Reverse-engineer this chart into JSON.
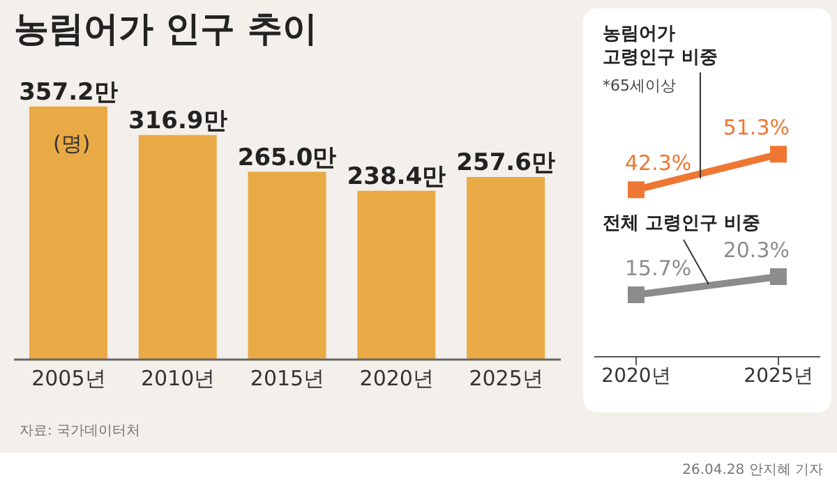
{
  "chart_data": [
    {
      "type": "bar",
      "title": "농림어가 인구 추이",
      "categories": [
        "2005년",
        "2010년",
        "2015년",
        "2020년",
        "2025년"
      ],
      "values": [
        357.2,
        316.9,
        265.0,
        238.4,
        257.6
      ],
      "value_labels": [
        "357.2만",
        "316.9만",
        "265.0만",
        "238.4만",
        "257.6만"
      ],
      "color": "#e9a944",
      "tick_labels": "x",
      "annotations": [
        "(명)",
        "자료: 국가데이터처",
        "26.04.28 안지혜 기자"
      ]
    },
    {
      "type": "line",
      "categories": [
        "2020년",
        "2025년"
      ],
      "tick_labels": "x",
      "marker": "square",
      "line_style": "solid",
      "series": [
        {
          "name": "농림어가 고령인구 비중",
          "color": "#ee7733",
          "values": [
            42.3,
            51.3
          ],
          "value_labels": [
            "42.3%",
            "51.3%"
          ]
        },
        {
          "name": "전체 고령인구 비중",
          "color": "#8c8c8c",
          "values": [
            15.7,
            20.3
          ],
          "value_labels": [
            "15.7%",
            "20.3%"
          ]
        }
      ],
      "annotations": [
        "*65세이상"
      ]
    }
  ]
}
